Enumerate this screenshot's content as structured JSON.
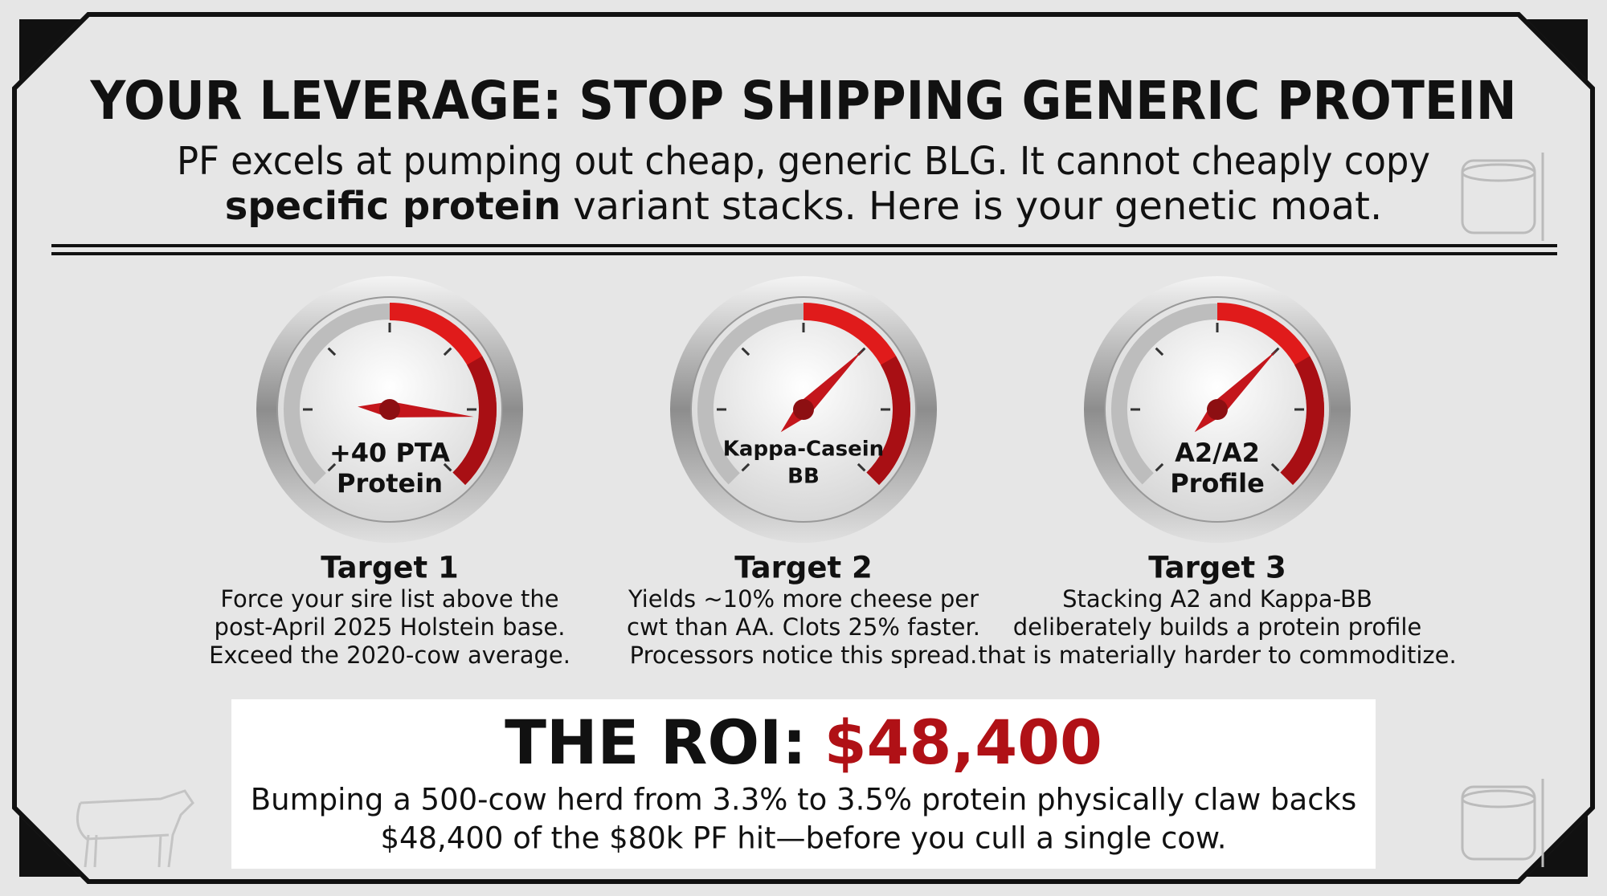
{
  "header": {
    "title": "YOUR LEVERAGE: STOP SHIPPING GENERIC PROTEIN",
    "subtitle_line1": "PF excels at pumping out cheap, generic BLG. It cannot cheaply copy",
    "subtitle_line2_bold": "specific protein",
    "subtitle_line2_rest": " variant stacks. Here is your genetic moat."
  },
  "targets": [
    {
      "gauge_label": [
        "+40 PTA",
        "Protein"
      ],
      "title": "Target 1",
      "lines": [
        "Force your sire list above the",
        "post-April 2025 Holstein base.",
        "Exceed the 2020-cow average."
      ]
    },
    {
      "gauge_label": [
        "Kappa-Casein",
        "BB"
      ],
      "title": "Target 2",
      "lines": [
        "Yields ~10% more cheese per",
        "cwt than AA. Clots 25% faster.",
        "Processors notice this spread."
      ]
    },
    {
      "gauge_label": [
        "A2/A2",
        "Profile"
      ],
      "title": "Target 3",
      "lines": [
        "Stacking A2 and Kappa-BB",
        "deliberately builds a protein profile",
        "that is materially harder to commoditize."
      ]
    }
  ],
  "roi": {
    "label": "THE ROI:",
    "amount": "$48,400",
    "lines": [
      "Bumping a 500-cow herd from 3.3% to 3.5% protein physically claw backs",
      "$48,400 of the $80k PF hit—before you cull a single cow."
    ]
  }
}
